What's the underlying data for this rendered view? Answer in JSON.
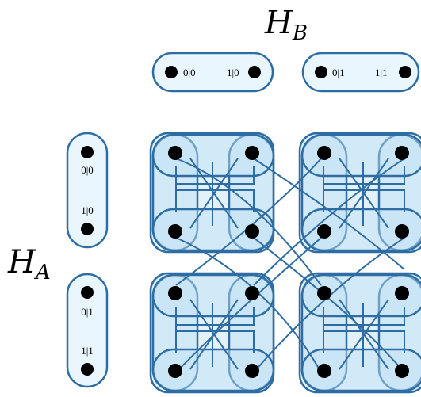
{
  "labels": {
    "hb_main": "H",
    "hb_sub": "B",
    "ha_main": "H",
    "ha_sub": "A"
  },
  "top_pills": [
    {
      "left": "0|0",
      "right": "1|0"
    },
    {
      "left": "0|1",
      "right": "1|1"
    }
  ],
  "left_pills": [
    {
      "top": "0|0",
      "bottom": "1|0"
    },
    {
      "top": "0|1",
      "bottom": "1|1"
    }
  ],
  "colors": {
    "stroke": "#2e6da4",
    "pill_fill": "#eaf6fd",
    "block_fill": "#bfe1f4"
  }
}
